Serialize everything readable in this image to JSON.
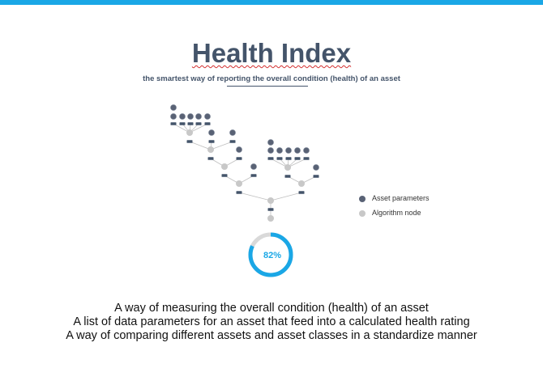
{
  "header": {
    "title": "Health Index",
    "subtitle": "the smartest way of reporting the overall condition (health) of an asset"
  },
  "gauge": {
    "value_label": "82%",
    "fraction": 0.82,
    "color": "#1aa7e6",
    "track_color": "#d9d9d9"
  },
  "legend": {
    "items": [
      {
        "label": "Asset parameters",
        "color": "#596275"
      },
      {
        "label": "Algorithm node",
        "color": "#c8c8c8"
      }
    ]
  },
  "description": {
    "lines": [
      "A way of measuring the overall condition (health) of an asset",
      "A list of data parameters for an asset that feed into a calculated health rating",
      "A way of comparing different assets and asset classes in a standardize manner"
    ]
  },
  "colors": {
    "accent": "#1aa7e6",
    "title": "#44546a",
    "param": "#596275",
    "algo": "#c8c8c8",
    "edge": "#bfbfbf"
  }
}
